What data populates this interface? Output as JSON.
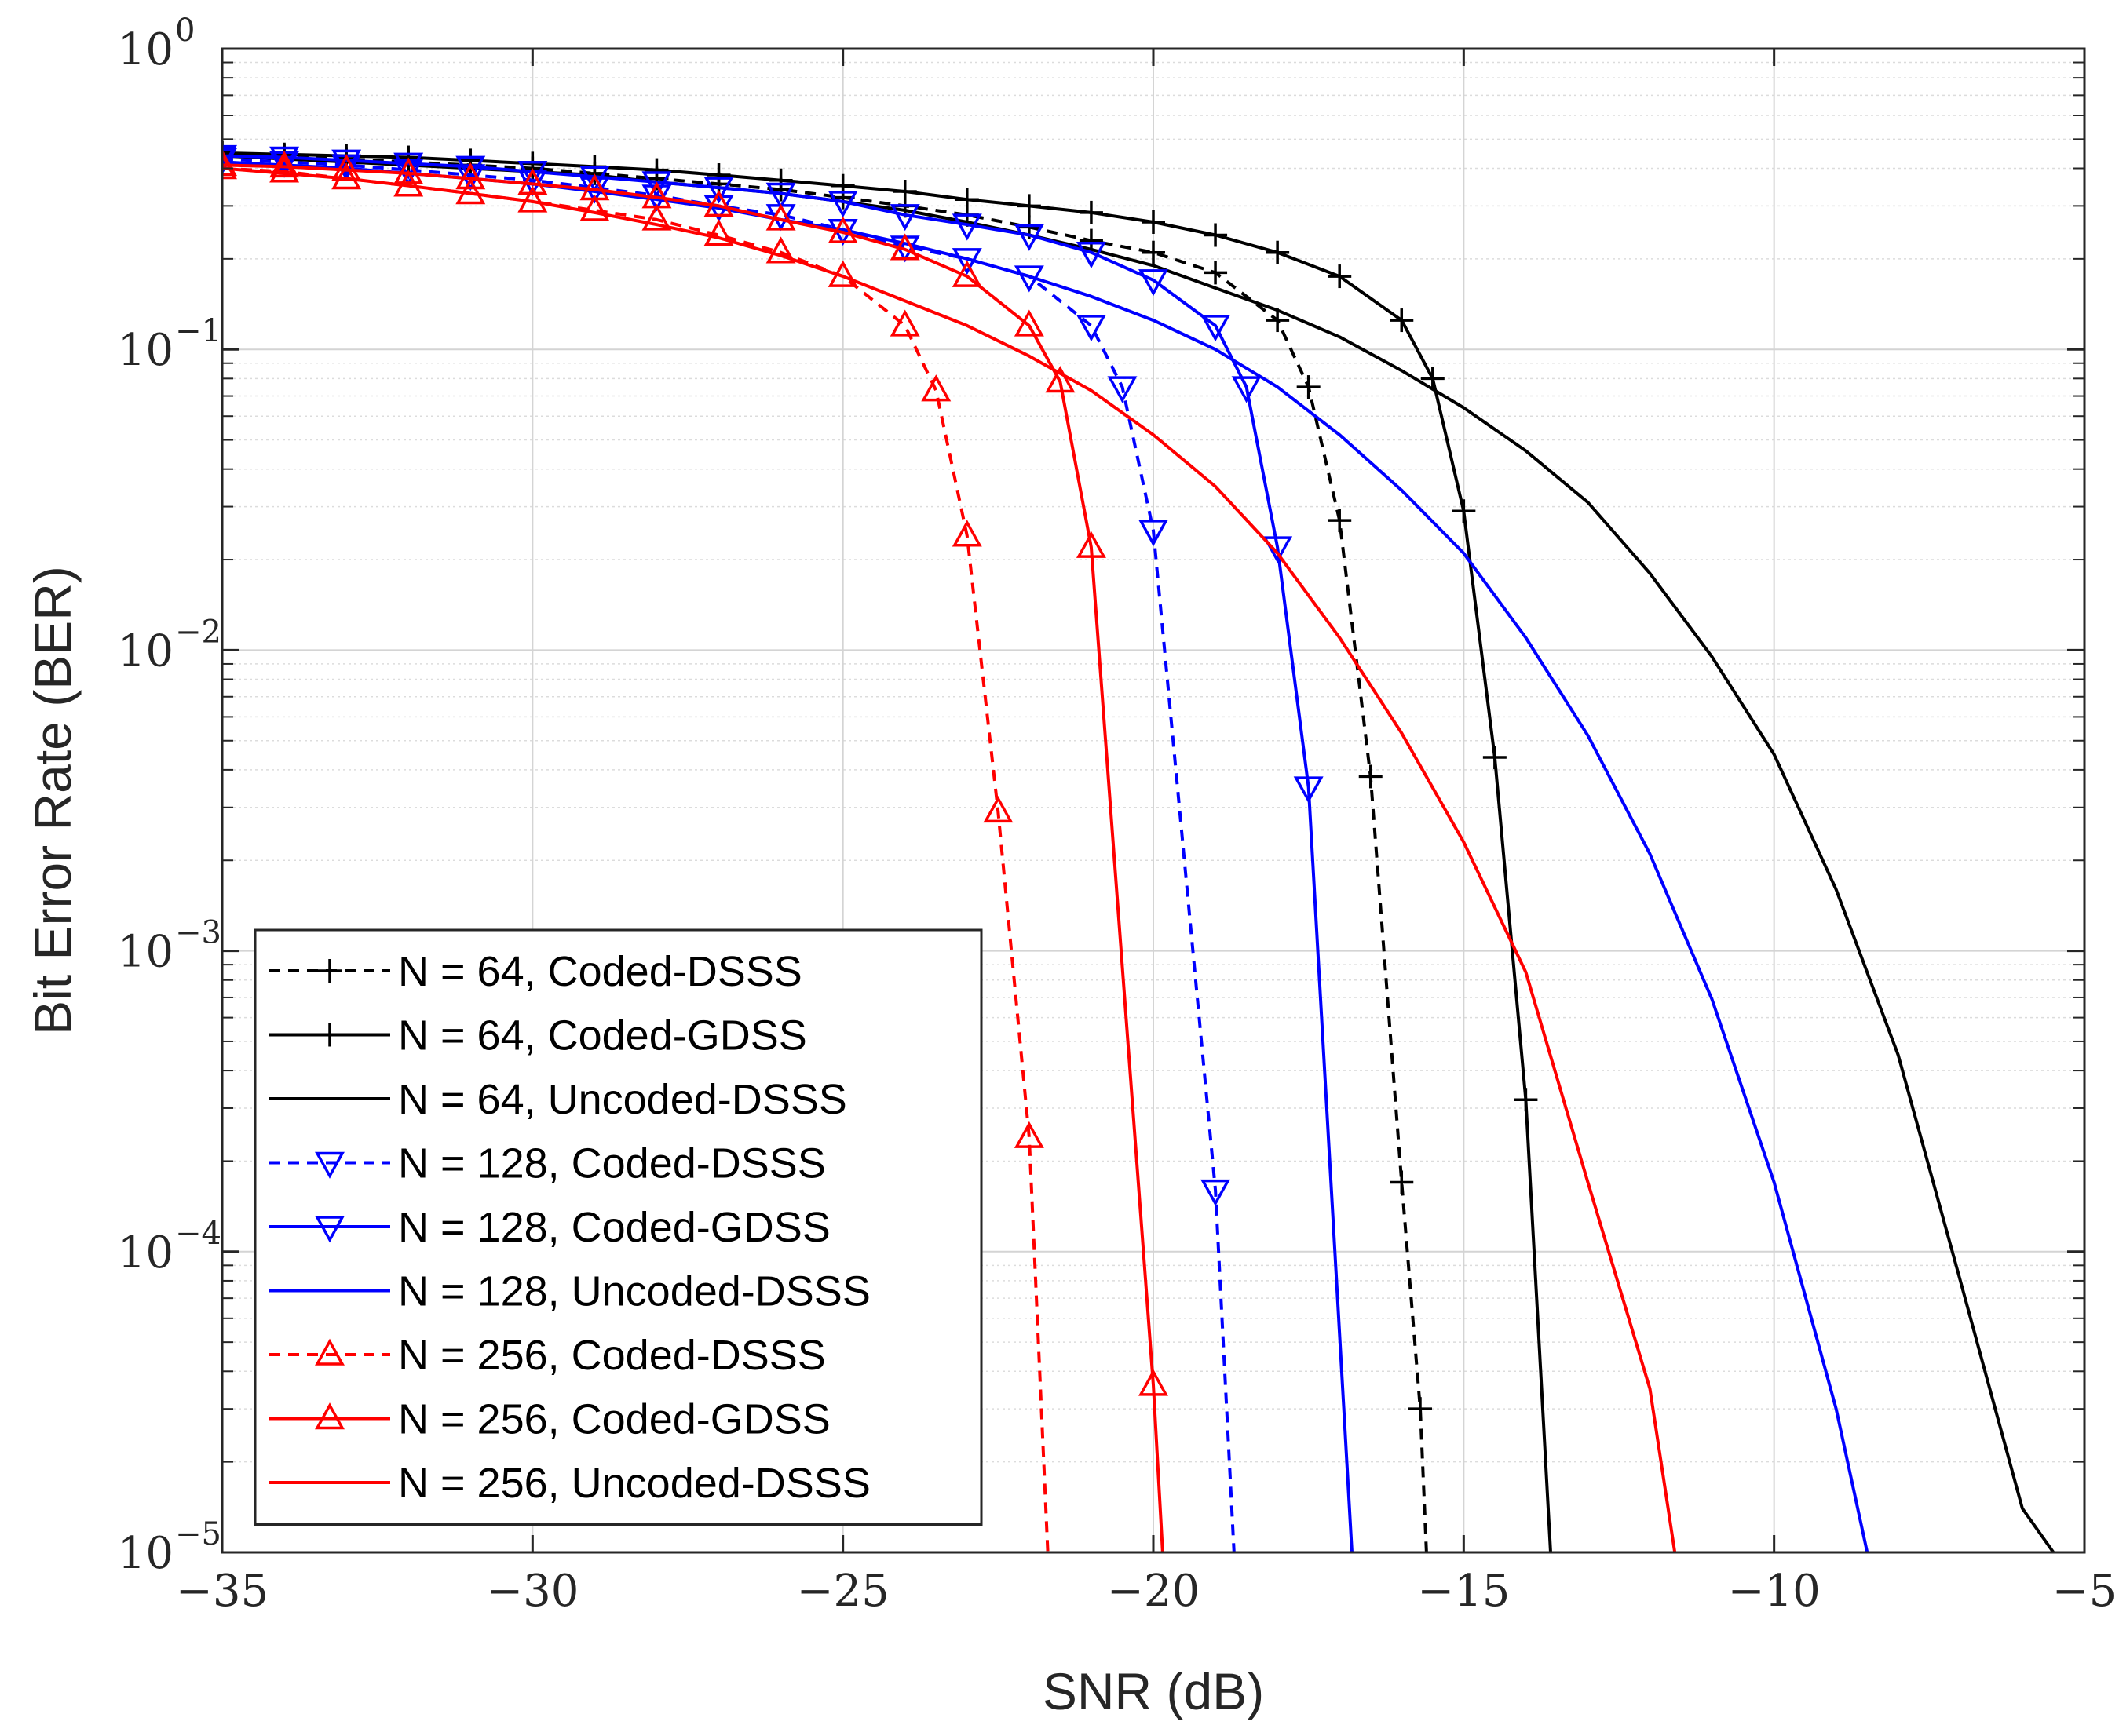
{
  "chart_data": {
    "type": "line",
    "title": "",
    "xlabel": "SNR (dB)",
    "ylabel": "Bit Error Rate (BER)",
    "xlim": [
      -35,
      -5
    ],
    "ylim": [
      1e-05,
      1
    ],
    "yscale": "log",
    "grid": true,
    "minor_grid": true,
    "legend_position": "bottom-left",
    "x_ticks": [
      -35,
      -30,
      -25,
      -20,
      -15,
      -10,
      -5
    ],
    "x_tick_labels": [
      "−35",
      "−30",
      "−25",
      "−20",
      "−15",
      "−10",
      "−5"
    ],
    "y_ticks": [
      {
        "value": 1,
        "base": "10",
        "exp": "0"
      },
      {
        "value": 0.1,
        "base": "10",
        "exp": "−1"
      },
      {
        "value": 0.01,
        "base": "10",
        "exp": "−2"
      },
      {
        "value": 0.001,
        "base": "10",
        "exp": "−3"
      },
      {
        "value": 0.0001,
        "base": "10",
        "exp": "−4"
      },
      {
        "value": 1e-05,
        "base": "10",
        "exp": "−5"
      }
    ],
    "series": [
      {
        "name": "N = 64, Coded-DSSS",
        "color": "#000000",
        "dash": "dashed",
        "marker": "plus",
        "x": [
          -35,
          -34,
          -33,
          -32,
          -31,
          -30,
          -29,
          -28,
          -27,
          -26,
          -25,
          -24,
          -23,
          -22,
          -21,
          -20,
          -19,
          -18,
          -17.5,
          -17,
          -16.5,
          -16,
          -15.7,
          -15.6
        ],
        "y": [
          0.45,
          0.44,
          0.43,
          0.42,
          0.41,
          0.4,
          0.385,
          0.37,
          0.355,
          0.34,
          0.32,
          0.3,
          0.28,
          0.255,
          0.23,
          0.21,
          0.18,
          0.125,
          0.075,
          0.027,
          0.0038,
          0.00017,
          3e-05,
          1e-05
        ],
        "marker_x": [
          -35,
          -34,
          -33,
          -32,
          -31,
          -30,
          -29,
          -28,
          -27,
          -26,
          -25,
          -24,
          -23,
          -22,
          -21,
          -20,
          -19,
          -18,
          -17.5,
          -17,
          -16.5,
          -16,
          -15.7
        ],
        "marker_y": [
          0.45,
          0.44,
          0.43,
          0.42,
          0.41,
          0.4,
          0.385,
          0.37,
          0.355,
          0.34,
          0.32,
          0.3,
          0.28,
          0.255,
          0.23,
          0.21,
          0.18,
          0.125,
          0.075,
          0.027,
          0.0038,
          0.00017,
          3e-05
        ]
      },
      {
        "name": "N = 64, Coded-GDSS",
        "color": "#000000",
        "dash": "solid",
        "marker": "plus",
        "x": [
          -35,
          -34,
          -33,
          -32,
          -31,
          -30,
          -29,
          -28,
          -27,
          -26,
          -25,
          -24,
          -23,
          -22,
          -21,
          -20,
          -19,
          -18,
          -17,
          -16,
          -15.5,
          -15,
          -14.5,
          -14,
          -13.6
        ],
        "y": [
          0.45,
          0.445,
          0.44,
          0.435,
          0.425,
          0.415,
          0.405,
          0.395,
          0.38,
          0.365,
          0.35,
          0.335,
          0.315,
          0.3,
          0.285,
          0.265,
          0.24,
          0.21,
          0.175,
          0.125,
          0.08,
          0.029,
          0.0044,
          0.00032,
          1e-05
        ],
        "marker_x": [
          -35,
          -34,
          -33,
          -32,
          -31,
          -30,
          -29,
          -28,
          -27,
          -26,
          -25,
          -24,
          -23,
          -22,
          -21,
          -20,
          -19,
          -18,
          -17,
          -16,
          -15.5,
          -15,
          -14.5,
          -14
        ],
        "marker_y": [
          0.45,
          0.445,
          0.44,
          0.435,
          0.425,
          0.415,
          0.405,
          0.395,
          0.38,
          0.365,
          0.35,
          0.335,
          0.315,
          0.3,
          0.285,
          0.265,
          0.24,
          0.21,
          0.175,
          0.125,
          0.08,
          0.029,
          0.0044,
          0.00032
        ]
      },
      {
        "name": "N = 64, Uncoded-DSSS",
        "color": "#000000",
        "dash": "solid",
        "marker": "none",
        "x": [
          -35,
          -34,
          -33,
          -32,
          -31,
          -30,
          -29,
          -28,
          -27,
          -26,
          -25,
          -24,
          -23,
          -22,
          -21,
          -20,
          -19,
          -18,
          -17,
          -16,
          -15,
          -14,
          -13,
          -12,
          -11,
          -10,
          -9,
          -8,
          -7,
          -6,
          -5.5
        ],
        "y": [
          0.44,
          0.43,
          0.42,
          0.41,
          0.4,
          0.39,
          0.38,
          0.36,
          0.345,
          0.33,
          0.31,
          0.29,
          0.265,
          0.24,
          0.215,
          0.19,
          0.16,
          0.135,
          0.11,
          0.085,
          0.064,
          0.046,
          0.031,
          0.018,
          0.0095,
          0.0045,
          0.0016,
          0.00045,
          8e-05,
          1.4e-05,
          1e-05
        ]
      },
      {
        "name": "N = 128, Coded-DSSS",
        "color": "#0000ff",
        "dash": "dashed",
        "marker": "triangle-down",
        "x": [
          -35,
          -34,
          -33,
          -32,
          -31,
          -30,
          -29,
          -28,
          -27,
          -26,
          -25,
          -24,
          -23,
          -22,
          -21,
          -20.5,
          -20,
          -19,
          -18.7
        ],
        "y": [
          0.43,
          0.42,
          0.41,
          0.395,
          0.38,
          0.365,
          0.345,
          0.325,
          0.3,
          0.28,
          0.25,
          0.22,
          0.2,
          0.175,
          0.12,
          0.075,
          0.025,
          0.00016,
          1e-05
        ],
        "marker_x": [
          -35,
          -34,
          -33,
          -32,
          -31,
          -30,
          -29,
          -28,
          -27,
          -26,
          -25,
          -24,
          -23,
          -22,
          -21,
          -20.5,
          -20,
          -19
        ],
        "marker_y": [
          0.43,
          0.42,
          0.41,
          0.395,
          0.38,
          0.365,
          0.345,
          0.325,
          0.3,
          0.28,
          0.25,
          0.22,
          0.2,
          0.175,
          0.12,
          0.075,
          0.025,
          0.00016
        ]
      },
      {
        "name": "N = 128, Coded-GDSS",
        "color": "#0000ff",
        "dash": "solid",
        "marker": "triangle-down",
        "x": [
          -35,
          -34,
          -33,
          -32,
          -31,
          -30,
          -29,
          -28,
          -27,
          -26,
          -25,
          -24,
          -23,
          -22,
          -21,
          -20,
          -19,
          -18.5,
          -18,
          -17.5,
          -16.8
        ],
        "y": [
          0.44,
          0.435,
          0.425,
          0.415,
          0.405,
          0.39,
          0.375,
          0.36,
          0.345,
          0.33,
          0.31,
          0.28,
          0.26,
          0.24,
          0.21,
          0.17,
          0.12,
          0.075,
          0.022,
          0.0035,
          1e-05
        ],
        "marker_x": [
          -35,
          -34,
          -33,
          -32,
          -31,
          -30,
          -29,
          -28,
          -27,
          -26,
          -25,
          -24,
          -23,
          -22,
          -21,
          -20,
          -19,
          -18.5,
          -18,
          -17.5
        ],
        "marker_y": [
          0.44,
          0.435,
          0.425,
          0.415,
          0.405,
          0.39,
          0.375,
          0.36,
          0.345,
          0.33,
          0.31,
          0.28,
          0.26,
          0.24,
          0.21,
          0.17,
          0.12,
          0.075,
          0.022,
          0.0035
        ]
      },
      {
        "name": "N = 128, Uncoded-DSSS",
        "color": "#0000ff",
        "dash": "solid",
        "marker": "none",
        "x": [
          -35,
          -34,
          -33,
          -32,
          -31,
          -30,
          -29,
          -28,
          -27,
          -26,
          -25,
          -24,
          -23,
          -22,
          -21,
          -20,
          -19,
          -18,
          -17,
          -16,
          -15,
          -14,
          -13,
          -12,
          -11,
          -10,
          -9,
          -8.5
        ],
        "y": [
          0.42,
          0.41,
          0.4,
          0.385,
          0.37,
          0.355,
          0.335,
          0.315,
          0.295,
          0.27,
          0.25,
          0.225,
          0.2,
          0.175,
          0.15,
          0.125,
          0.1,
          0.075,
          0.052,
          0.034,
          0.021,
          0.011,
          0.0052,
          0.0021,
          0.00069,
          0.00017,
          3e-05,
          1e-05
        ]
      },
      {
        "name": "N = 256, Coded-DSSS",
        "color": "#ff0000",
        "dash": "dashed",
        "marker": "triangle-up",
        "x": [
          -35,
          -34,
          -33,
          -32,
          -31,
          -30,
          -29,
          -28,
          -27,
          -26,
          -25,
          -24,
          -23.5,
          -23,
          -22.5,
          -22,
          -21.7
        ],
        "y": [
          0.4,
          0.39,
          0.37,
          0.35,
          0.33,
          0.31,
          0.29,
          0.27,
          0.24,
          0.21,
          0.175,
          0.12,
          0.073,
          0.024,
          0.0029,
          0.00024,
          1e-05
        ],
        "marker_x": [
          -35,
          -34,
          -33,
          -32,
          -31,
          -30,
          -29,
          -28,
          -27,
          -26,
          -25,
          -24,
          -23.5,
          -23,
          -22.5,
          -22
        ],
        "marker_y": [
          0.4,
          0.39,
          0.37,
          0.35,
          0.33,
          0.31,
          0.29,
          0.27,
          0.24,
          0.21,
          0.175,
          0.12,
          0.073,
          0.024,
          0.0029,
          0.00024
        ]
      },
      {
        "name": "N = 256, Coded-GDSS",
        "color": "#ff0000",
        "dash": "solid",
        "marker": "triangle-up",
        "x": [
          -35,
          -34,
          -33,
          -32,
          -31,
          -30,
          -29,
          -28,
          -27,
          -26,
          -25,
          -24,
          -23,
          -22,
          -21.5,
          -21,
          -20,
          -19.85
        ],
        "y": [
          0.41,
          0.405,
          0.395,
          0.385,
          0.37,
          0.355,
          0.34,
          0.32,
          0.3,
          0.27,
          0.245,
          0.215,
          0.175,
          0.12,
          0.078,
          0.022,
          3.6e-05,
          1e-05
        ],
        "marker_x": [
          -35,
          -34,
          -33,
          -32,
          -31,
          -30,
          -29,
          -28,
          -27,
          -26,
          -25,
          -24,
          -23,
          -22,
          -21.5,
          -21,
          -20
        ],
        "marker_y": [
          0.41,
          0.405,
          0.395,
          0.385,
          0.37,
          0.355,
          0.34,
          0.32,
          0.3,
          0.27,
          0.245,
          0.215,
          0.175,
          0.12,
          0.078,
          0.022,
          3.6e-05
        ]
      },
      {
        "name": "N = 256, Uncoded-DSSS",
        "color": "#ff0000",
        "dash": "solid",
        "marker": "none",
        "x": [
          -35,
          -34,
          -33,
          -32,
          -31,
          -30,
          -29,
          -28,
          -27,
          -26,
          -25,
          -24,
          -23,
          -22,
          -21,
          -20,
          -19,
          -18,
          -17,
          -16,
          -15,
          -14,
          -13,
          -12,
          -11.6
        ],
        "y": [
          0.4,
          0.385,
          0.37,
          0.35,
          0.33,
          0.31,
          0.285,
          0.26,
          0.235,
          0.205,
          0.175,
          0.145,
          0.12,
          0.095,
          0.073,
          0.052,
          0.035,
          0.021,
          0.011,
          0.0053,
          0.0023,
          0.00085,
          0.00017,
          3.5e-05,
          1e-05
        ]
      }
    ]
  }
}
